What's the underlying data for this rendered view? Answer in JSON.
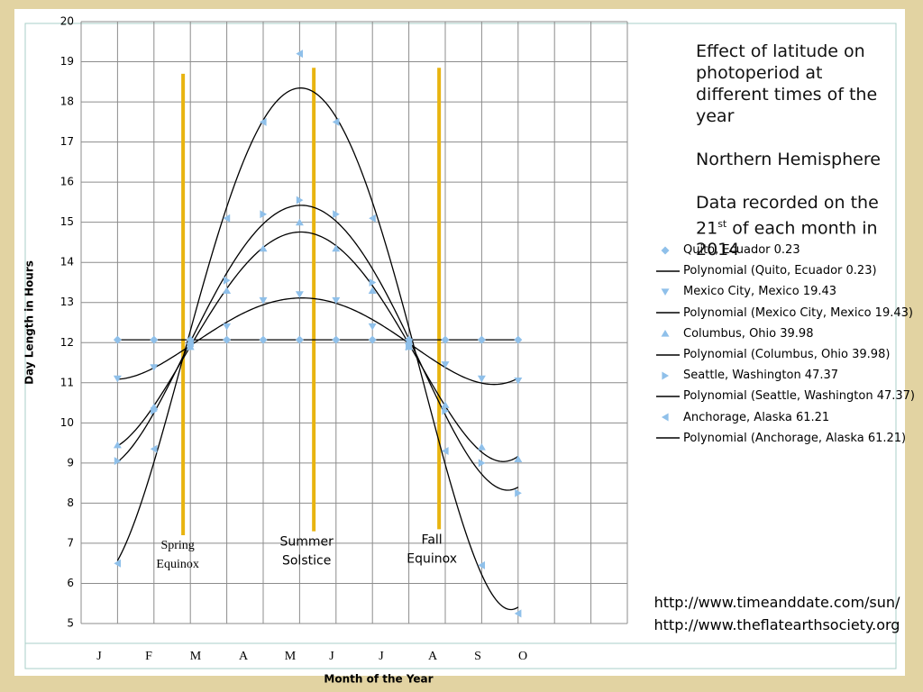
{
  "chart_data": {
    "type": "scatter",
    "y_label": "Day Length in Hours",
    "x_label": "Month of the Year",
    "x": [
      1,
      2,
      3,
      4,
      5,
      6,
      7,
      8,
      9,
      10,
      11,
      12
    ],
    "xlim": [
      0,
      15
    ],
    "xticks": [
      0,
      1,
      2,
      3,
      4,
      5,
      6,
      7,
      8,
      9,
      10,
      11,
      12,
      13,
      14,
      15
    ],
    "ylim": [
      5,
      20
    ],
    "yticks": [
      5,
      6,
      7,
      8,
      9,
      10,
      11,
      12,
      13,
      14,
      15,
      16,
      17,
      18,
      19,
      20
    ],
    "grid": true,
    "month_labels": [
      "J",
      "F",
      "M",
      "A",
      "M",
      "J",
      "J",
      "A",
      "S",
      "O"
    ],
    "series": [
      {
        "name": "Quito, Ecuador 0.23",
        "trendline_name": "Polynomial (Quito, Ecuador 0.23)",
        "marker": "diamond",
        "color": "#8fc0ea",
        "trend_color": "#000000",
        "values": [
          12.07,
          12.07,
          12.07,
          12.07,
          12.07,
          12.07,
          12.07,
          12.07,
          12.07,
          12.07,
          12.07,
          12.07
        ]
      },
      {
        "name": "Mexico City, Mexico 19.43",
        "trendline_name": "Polynomial (Mexico City, Mexico 19.43)",
        "marker": "triangle-down",
        "color": "#8fc0ea",
        "trend_color": "#000000",
        "values": [
          11.1,
          11.38,
          11.9,
          12.4,
          13.05,
          13.2,
          13.05,
          12.4,
          11.9,
          11.45,
          11.1,
          11.05
        ]
      },
      {
        "name": "Columbus, Ohio 39.98",
        "trendline_name": "Polynomial (Columbus, Ohio 39.98)",
        "marker": "triangle-up",
        "color": "#8fc0ea",
        "trend_color": "#000000",
        "values": [
          9.45,
          10.4,
          11.9,
          13.3,
          14.35,
          15.0,
          14.35,
          13.3,
          11.9,
          10.45,
          9.4,
          9.1
        ]
      },
      {
        "name": "Seattle, Washington 47.37",
        "trendline_name": "Polynomial (Seattle, Washington 47.37)",
        "marker": "triangle-right",
        "color": "#8fc0ea",
        "trend_color": "#000000",
        "values": [
          9.05,
          10.3,
          11.9,
          13.55,
          15.2,
          15.55,
          15.2,
          13.5,
          11.9,
          10.3,
          9.0,
          8.25
        ]
      },
      {
        "name": "Anchorage, Alaska 61.21",
        "trendline_name": "Polynomial (Anchorage, Alaska 61.21)",
        "marker": "triangle-left",
        "color": "#8fc0ea",
        "trend_color": "#000000",
        "values": [
          6.5,
          9.35,
          12.0,
          15.1,
          17.5,
          19.2,
          17.5,
          15.1,
          12.0,
          9.3,
          6.45,
          5.25
        ]
      }
    ],
    "annotations": [
      {
        "lines": [
          "Spring",
          "Equinox"
        ],
        "x": 2.8,
        "y_range": [
          7.2,
          18.7
        ],
        "color": "#e8b410"
      },
      {
        "lines": [
          "Summer",
          "Solstice"
        ],
        "x": 6.39,
        "y_range": [
          7.3,
          18.85
        ],
        "color": "#e8b410"
      },
      {
        "lines": [
          "Fall",
          "Equinox"
        ],
        "x": 9.83,
        "y_range": [
          7.35,
          18.85
        ],
        "color": "#e8b410"
      }
    ],
    "notes": {
      "heading": "Effect of latitude on photoperiod at different times of the year",
      "hemisphere": "Northern Hemisphere",
      "recorded": [
        "Data recorded on the 21",
        "st",
        " of each month in 2014"
      ]
    },
    "sources": [
      "http://www.timeanddate.com/sun/",
      "http://www.theflatearthsociety.org"
    ]
  }
}
